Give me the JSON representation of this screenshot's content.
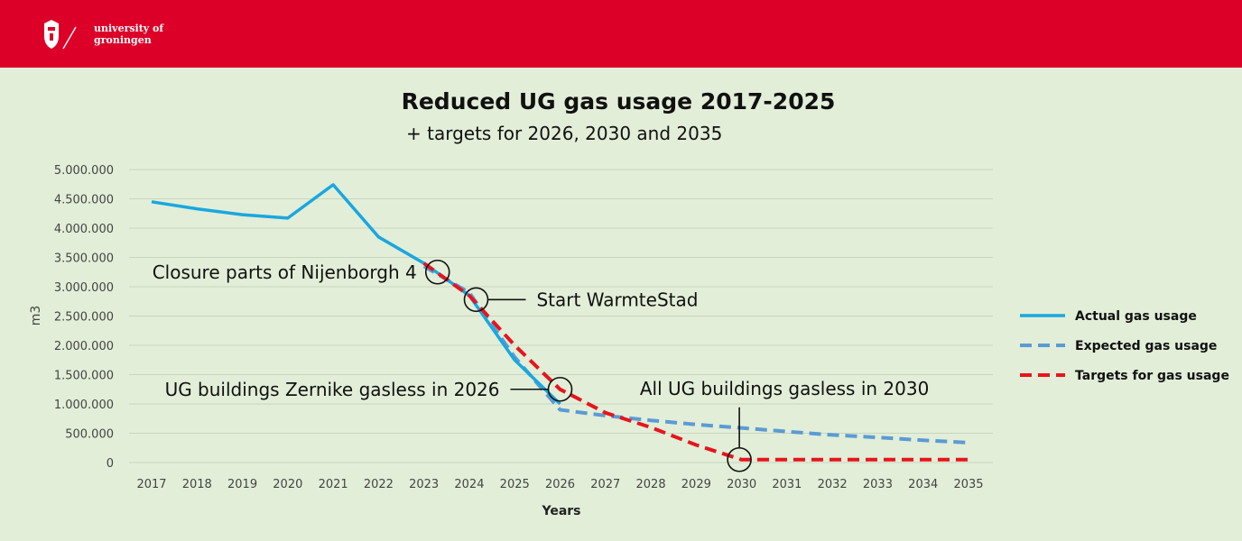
{
  "header": {
    "logo_line1": "university of",
    "logo_line2": "groningen",
    "logo_icon": "crest-icon",
    "bar_color": "#dc0028"
  },
  "chart_data": {
    "type": "line",
    "title": "Reduced UG gas usage 2017-2025",
    "subtitle": "+ targets for 2026, 2030 and 2035",
    "xlabel": "Years",
    "ylabel": "m3",
    "categories": [
      "2017",
      "2018",
      "2019",
      "2020",
      "2021",
      "2022",
      "2023",
      "2024",
      "2025",
      "2026",
      "2027",
      "2028",
      "2029",
      "2030",
      "2031",
      "2032",
      "2033",
      "2034",
      "2035"
    ],
    "yticks": [
      0,
      500000,
      1000000,
      1500000,
      2000000,
      2500000,
      3000000,
      3500000,
      4000000,
      4500000,
      5000000
    ],
    "ytick_labels": [
      "0",
      "500.000",
      "1.000.000",
      "1.500.000",
      "2.000.000",
      "2.500.000",
      "3.000.000",
      "3.500.000",
      "4.000.000",
      "4.500.000",
      "5.000.000"
    ],
    "ylim": [
      0,
      5000000
    ],
    "grid": true,
    "series": [
      {
        "name": "Actual gas usage",
        "color": "#1aa7df",
        "style": "solid",
        "points": [
          [
            2017,
            4450000
          ],
          [
            2018,
            4330000
          ],
          [
            2019,
            4230000
          ],
          [
            2020,
            4170000
          ],
          [
            2021,
            4740000
          ],
          [
            2022,
            3850000
          ],
          [
            2023,
            3400000
          ],
          [
            2024,
            2850000
          ],
          [
            2025,
            1750000
          ],
          [
            2026,
            1000000
          ]
        ]
      },
      {
        "name": "Expected gas usage",
        "color": "#5b9bd5",
        "style": "dashed",
        "points": [
          [
            2023,
            3350000
          ],
          [
            2024,
            2900000
          ],
          [
            2025,
            1800000
          ],
          [
            2026,
            900000
          ],
          [
            2027,
            800000
          ],
          [
            2028,
            720000
          ],
          [
            2029,
            650000
          ],
          [
            2030,
            590000
          ],
          [
            2031,
            530000
          ],
          [
            2032,
            470000
          ],
          [
            2033,
            430000
          ],
          [
            2034,
            380000
          ],
          [
            2035,
            340000
          ]
        ]
      },
      {
        "name": "Targets for gas usage",
        "color": "#e8141c",
        "style": "dashed",
        "points": [
          [
            2023,
            3400000
          ],
          [
            2024,
            2850000
          ],
          [
            2025,
            2000000
          ],
          [
            2026,
            1250000
          ],
          [
            2027,
            850000
          ],
          [
            2028,
            600000
          ],
          [
            2029,
            300000
          ],
          [
            2030,
            50000
          ],
          [
            2031,
            50000
          ],
          [
            2032,
            50000
          ],
          [
            2033,
            50000
          ],
          [
            2034,
            50000
          ],
          [
            2035,
            50000
          ]
        ]
      }
    ],
    "annotations": [
      {
        "text": "Closure parts of Nijenborgh 4",
        "x": 2023.3,
        "y": 3250000,
        "side": "left"
      },
      {
        "text": "Start WarmteStad",
        "x": 2024.15,
        "y": 2780000,
        "side": "right"
      },
      {
        "text": "UG buildings Zernike gasless in 2026",
        "x": 2026.0,
        "y": 1250000,
        "side": "left"
      },
      {
        "text": "All UG buildings gasless in 2030",
        "x": 2029.95,
        "y": 50000,
        "side": "above"
      }
    ],
    "legend_position": "right"
  }
}
